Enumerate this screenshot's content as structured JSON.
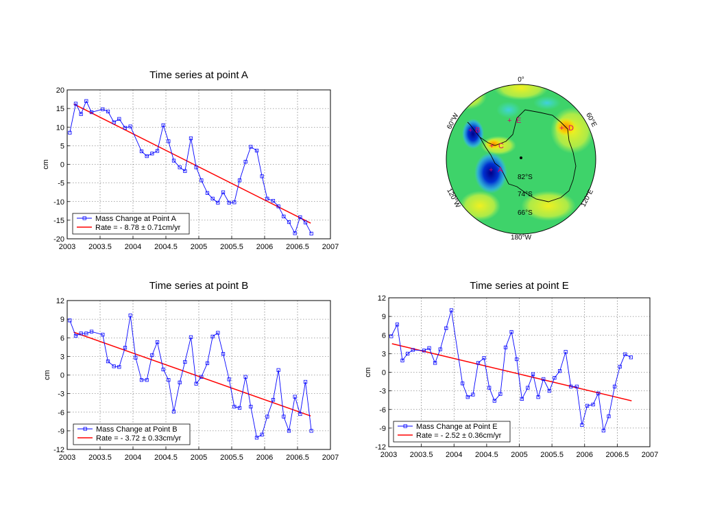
{
  "chart_data": [
    {
      "type": "line",
      "title": "Time series at point A",
      "xlabel": "",
      "ylabel": "cm",
      "xlim": [
        2003,
        2007
      ],
      "ylim": [
        -20,
        20
      ],
      "xticks": [
        2003,
        2003.5,
        2004,
        2004.5,
        2005,
        2005.5,
        2006,
        2006.5,
        2007
      ],
      "yticks": [
        20,
        15,
        10,
        5,
        0,
        -5,
        -10,
        -15,
        -20
      ],
      "xtick_labels": [
        "2003",
        "2003.5",
        "2004",
        "2004.5",
        "2005",
        "2005.5",
        "2006",
        "2006.5",
        "2007"
      ],
      "ytick_labels": [
        "20",
        "15",
        "10",
        "5",
        "0",
        "-5",
        "-10",
        "-15",
        "-20"
      ],
      "grid": true,
      "legend_position": "bottom-left",
      "series": [
        {
          "name": "Mass Change at Point A",
          "color": "#0000ff",
          "marker": "square",
          "x": [
            2003.04,
            2003.13,
            2003.21,
            2003.29,
            2003.37,
            2003.54,
            2003.62,
            2003.71,
            2003.79,
            2003.88,
            2003.96,
            2004.13,
            2004.21,
            2004.29,
            2004.37,
            2004.46,
            2004.54,
            2004.62,
            2004.71,
            2004.79,
            2004.88,
            2004.96,
            2005.04,
            2005.13,
            2005.21,
            2005.29,
            2005.37,
            2005.46,
            2005.54,
            2005.62,
            2005.71,
            2005.79,
            2005.88,
            2005.96,
            2006.04,
            2006.13,
            2006.21,
            2006.29,
            2006.37,
            2006.46,
            2006.54,
            2006.62,
            2006.71
          ],
          "y": [
            8.5,
            16.3,
            13.5,
            17,
            14,
            14.8,
            14.2,
            11.3,
            12.2,
            9.8,
            10.2,
            3.5,
            2.2,
            2.9,
            3.6,
            10.5,
            6.2,
            1.0,
            -0.8,
            -1.8,
            7.0,
            -0.8,
            -4.3,
            -7.7,
            -9.2,
            -10.3,
            -7.5,
            -10.3,
            -10.2,
            -4.3,
            0.7,
            4.7,
            3.7,
            -3.2,
            -9.2,
            -9.8,
            -11.3,
            -14,
            -15.5,
            -18.5,
            -14.2,
            -15.6,
            -18.6
          ]
        },
        {
          "name": "Rate = - 8.78 ± 0.71cm/yr",
          "color": "#ff0000",
          "x": [
            2003.1,
            2006.7
          ],
          "y": [
            16.2,
            -15.8
          ]
        }
      ]
    },
    {
      "type": "line",
      "title": "Time series at point B",
      "xlabel": "",
      "ylabel": "cm",
      "xlim": [
        2003,
        2007
      ],
      "ylim": [
        -12,
        12
      ],
      "xticks": [
        2003,
        2003.5,
        2004,
        2004.5,
        2005,
        2005.5,
        2006,
        2006.5,
        2007
      ],
      "yticks": [
        12,
        9,
        6,
        3,
        0,
        -3,
        -6,
        -9,
        -12
      ],
      "xtick_labels": [
        "2003",
        "2003.5",
        "2004",
        "2004.5",
        "2005",
        "2005.5",
        "2006",
        "2006.5",
        "2007"
      ],
      "ytick_labels": [
        "12",
        "9",
        "6",
        "3",
        "0",
        "-3",
        "-6",
        "-9",
        "-12"
      ],
      "grid": true,
      "legend_position": "bottom-left",
      "series": [
        {
          "name": "Mass Change at Point B",
          "color": "#0000ff",
          "marker": "square",
          "x": [
            2003.04,
            2003.13,
            2003.21,
            2003.29,
            2003.37,
            2003.54,
            2003.62,
            2003.71,
            2003.79,
            2003.88,
            2003.96,
            2004.04,
            2004.13,
            2004.21,
            2004.29,
            2004.37,
            2004.46,
            2004.54,
            2004.62,
            2004.71,
            2004.79,
            2004.88,
            2004.96,
            2005.04,
            2005.13,
            2005.21,
            2005.29,
            2005.37,
            2005.46,
            2005.54,
            2005.62,
            2005.71,
            2005.79,
            2005.88,
            2005.96,
            2006.04,
            2006.13,
            2006.21,
            2006.29,
            2006.37,
            2006.46,
            2006.54,
            2006.62,
            2006.71
          ],
          "y": [
            8.8,
            6.3,
            6.7,
            6.7,
            7.0,
            6.5,
            2.2,
            1.4,
            1.3,
            4.4,
            9.6,
            2.8,
            -0.8,
            -0.8,
            3.2,
            5.3,
            0.9,
            -0.8,
            -5.9,
            -1.2,
            2.1,
            6.1,
            -1.4,
            -0.3,
            1.9,
            6.2,
            6.8,
            3.4,
            -0.7,
            -5.1,
            -5.3,
            -0.3,
            -5.1,
            -10.1,
            -9.6,
            -6.7,
            -4.0,
            0.8,
            -6.7,
            -9.0,
            -3.5,
            -6.3,
            -1.1,
            -9.0
          ]
        },
        {
          "name": "Rate = - 3.72 ± 0.33cm/yr",
          "color": "#ff0000",
          "x": [
            2003.1,
            2006.7
          ],
          "y": [
            6.9,
            -6.6
          ]
        }
      ]
    },
    {
      "type": "line",
      "title": "Time series at point E",
      "xlabel": "",
      "ylabel": "cm",
      "xlim": [
        2003,
        2007
      ],
      "ylim": [
        -12,
        12
      ],
      "xticks": [
        2003,
        2003.5,
        2004,
        2004.5,
        2005,
        2005.5,
        2006,
        2006.5,
        2007
      ],
      "yticks": [
        12,
        9,
        6,
        3,
        0,
        -3,
        -6,
        -9,
        -12
      ],
      "xtick_labels": [
        "2003",
        "2003.5",
        "2004",
        "2004.5",
        "2005",
        "2005.5",
        "2006",
        "2006.5",
        "2007"
      ],
      "ytick_labels": [
        "12",
        "9",
        "6",
        "3",
        "0",
        "-3",
        "-6",
        "-9",
        "-12"
      ],
      "grid": true,
      "legend_position": "bottom-left",
      "series": [
        {
          "name": "Mass Change at Point E",
          "color": "#0000ff",
          "marker": "square",
          "x": [
            2003.04,
            2003.13,
            2003.21,
            2003.29,
            2003.37,
            2003.54,
            2003.62,
            2003.71,
            2003.79,
            2003.88,
            2003.96,
            2004.13,
            2004.21,
            2004.29,
            2004.37,
            2004.46,
            2004.54,
            2004.62,
            2004.71,
            2004.79,
            2004.88,
            2004.96,
            2005.04,
            2005.13,
            2005.21,
            2005.29,
            2005.37,
            2005.46,
            2005.54,
            2005.62,
            2005.71,
            2005.79,
            2005.88,
            2005.96,
            2006.04,
            2006.13,
            2006.21,
            2006.29,
            2006.37,
            2006.46,
            2006.54,
            2006.62,
            2006.71
          ],
          "y": [
            5.8,
            7.7,
            1.9,
            3.0,
            3.6,
            3.5,
            3.9,
            1.5,
            3.7,
            7.1,
            10.0,
            -1.8,
            -4.0,
            -3.6,
            1.5,
            2.3,
            -2.5,
            -4.6,
            -3.5,
            4.0,
            6.5,
            2.1,
            -4.3,
            -2.5,
            -0.3,
            -4.0,
            -1.1,
            -3.0,
            -0.9,
            0.2,
            3.3,
            -2.3,
            -2.3,
            -8.5,
            -5.4,
            -5.2,
            -3.4,
            -9.4,
            -7.1,
            -2.3,
            0.9,
            2.9,
            2.4
          ]
        },
        {
          "name": "Rate = - 2.52 ± 0.36cm/yr",
          "color": "#ff0000",
          "x": [
            2003.05,
            2006.72
          ],
          "y": [
            4.6,
            -4.6
          ]
        }
      ]
    }
  ],
  "map": {
    "labels": {
      "top": "0°",
      "bottom": "180°W",
      "upper_left": "60°W",
      "upper_right": "60°E",
      "lower_left": "120°W",
      "lower_right": "120°E",
      "lat_82": "82°S",
      "lat_74": "74°S",
      "lat_66": "66°S"
    },
    "points": [
      "A",
      "B",
      "C",
      "D",
      "E"
    ]
  }
}
